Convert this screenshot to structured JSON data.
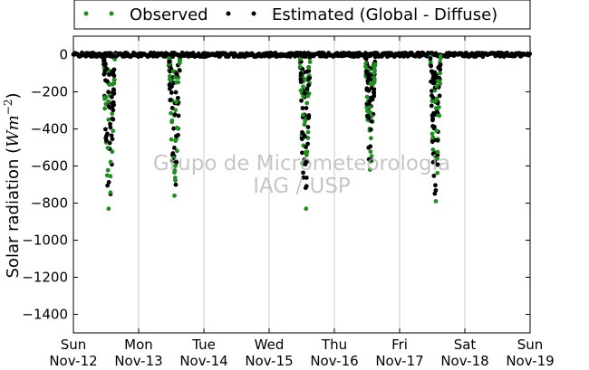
{
  "chart_data": {
    "type": "scatter",
    "title": "",
    "ylabel": "Solar radiation ($Wm^{-2}$)",
    "ylabel_text": "Solar radiation (",
    "ylabel_math": "Wm",
    "ylabel_exp": "−2",
    "ylabel_close": ")",
    "xlabel": "",
    "ylim": [
      -1500,
      100
    ],
    "xlim": [
      0,
      7
    ],
    "grid": "vertical",
    "legend": "top-center",
    "y_ticks": [
      0,
      -200,
      -400,
      -600,
      -800,
      -1000,
      -1200,
      -1400
    ],
    "y_tick_labels": [
      "0",
      "−200",
      "−400",
      "−600",
      "−800",
      "−1000",
      "−1200",
      "−1400"
    ],
    "x_ticks": [
      {
        "value": 0,
        "day": "Sun",
        "date": "Nov-12"
      },
      {
        "value": 1,
        "day": "Mon",
        "date": "Nov-13"
      },
      {
        "value": 2,
        "day": "Tue",
        "date": "Nov-14"
      },
      {
        "value": 3,
        "day": "Wed",
        "date": "Nov-15"
      },
      {
        "value": 4,
        "day": "Thu",
        "date": "Nov-16"
      },
      {
        "value": 5,
        "day": "Fri",
        "date": "Nov-17"
      },
      {
        "value": 6,
        "day": "Sat",
        "date": "Nov-18"
      },
      {
        "value": 7,
        "day": "Sun",
        "date": "Nov-19"
      }
    ],
    "series": [
      {
        "name": "Observed",
        "color": "#228b22"
      },
      {
        "name": "Estimated (Global - Diffuse)",
        "color": "#000000"
      }
    ],
    "daytime_events": [
      {
        "day": 0.55,
        "width": 0.18,
        "min": -830
      },
      {
        "day": 1.55,
        "width": 0.18,
        "min": -760
      },
      {
        "day": 3.55,
        "width": 0.16,
        "min": -830
      },
      {
        "day": 4.55,
        "width": 0.16,
        "min": -620
      },
      {
        "day": 5.55,
        "width": 0.16,
        "min": -790
      }
    ],
    "watermark": [
      "Grupo de Micrometeorologia",
      "IAG / USP"
    ]
  }
}
